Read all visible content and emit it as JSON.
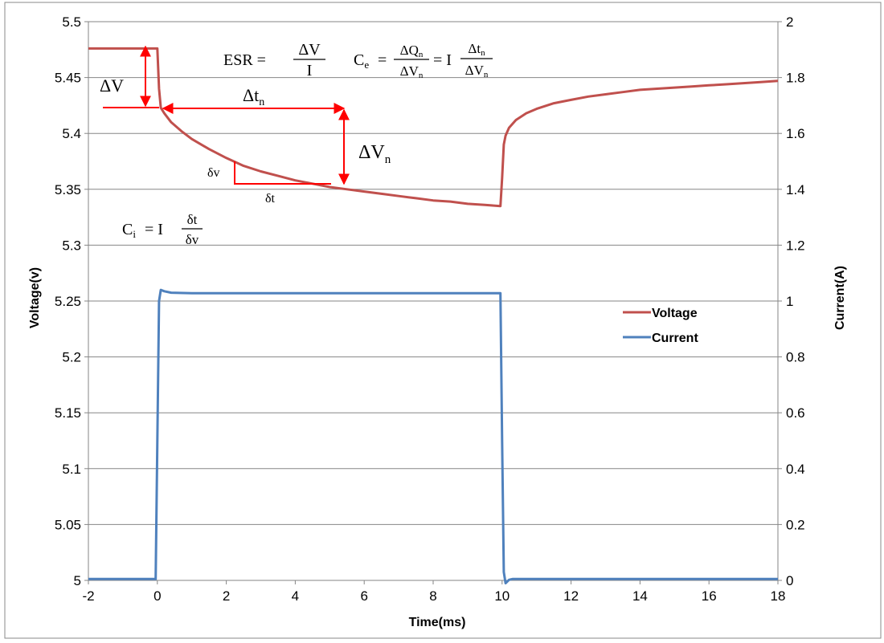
{
  "chart_data": {
    "type": "line",
    "title": "",
    "xlabel": "Time(ms)",
    "ylabel_left": "Voltage(v)",
    "ylabel_right": "Current(A)",
    "xlim": [
      -2,
      18
    ],
    "ylim_left": [
      5,
      5.5
    ],
    "ylim_right": [
      0,
      2
    ],
    "x_ticks": [
      "-2",
      "0",
      "2",
      "4",
      "6",
      "8",
      "10",
      "12",
      "14",
      "16",
      "18"
    ],
    "y_left_ticks": [
      "5",
      "5.05",
      "5.1",
      "5.15",
      "5.2",
      "5.25",
      "5.3",
      "5.35",
      "5.4",
      "5.45",
      "5.5"
    ],
    "y_right_ticks": [
      "0",
      "0.2",
      "0.4",
      "0.6",
      "0.8",
      "1",
      "1.2",
      "1.4",
      "1.6",
      "1.8",
      "2"
    ],
    "grid": "horizontal",
    "legend_position": "right",
    "series": [
      {
        "name": "Voltage",
        "axis": "left",
        "color": "#c0504d",
        "x": [
          -2,
          -1,
          -0.1,
          0,
          0.05,
          0.1,
          0.2,
          0.4,
          0.7,
          1.0,
          1.5,
          2.0,
          2.5,
          3.0,
          3.5,
          4.0,
          4.5,
          5.0,
          5.5,
          6.0,
          6.5,
          7.0,
          7.5,
          8.0,
          8.5,
          9.0,
          9.5,
          9.95,
          10.0,
          10.05,
          10.1,
          10.2,
          10.4,
          10.7,
          11.0,
          11.5,
          12.0,
          12.5,
          13.0,
          13.5,
          14.0,
          14.5,
          15.0,
          15.5,
          16.0,
          16.5,
          17.0,
          17.5,
          18.0
        ],
        "y": [
          5.476,
          5.476,
          5.476,
          5.476,
          5.44,
          5.423,
          5.418,
          5.41,
          5.402,
          5.395,
          5.386,
          5.378,
          5.371,
          5.366,
          5.362,
          5.358,
          5.355,
          5.352,
          5.35,
          5.348,
          5.346,
          5.344,
          5.342,
          5.34,
          5.339,
          5.337,
          5.336,
          5.335,
          5.36,
          5.39,
          5.398,
          5.405,
          5.412,
          5.418,
          5.422,
          5.427,
          5.43,
          5.433,
          5.435,
          5.437,
          5.439,
          5.44,
          5.441,
          5.442,
          5.443,
          5.444,
          5.445,
          5.446,
          5.447
        ]
      },
      {
        "name": "Current",
        "axis": "right",
        "color": "#4f81bd",
        "x": [
          -2,
          -0.05,
          0,
          0.05,
          0.1,
          0.2,
          0.4,
          1.0,
          3.0,
          5.0,
          7.0,
          9.0,
          9.95,
          10.0,
          10.05,
          10.1,
          10.2,
          10.3,
          11.0,
          14.0,
          18.0
        ],
        "y": [
          0.005,
          0.005,
          0.5,
          1.0,
          1.04,
          1.035,
          1.03,
          1.028,
          1.028,
          1.028,
          1.028,
          1.028,
          1.028,
          0.5,
          0.03,
          -0.01,
          0.002,
          0.005,
          0.005,
          0.005,
          0.005
        ]
      }
    ],
    "annotations": {
      "esr_lhs": "ESR =",
      "esr_num": "ΔV",
      "esr_den": "I",
      "ce_lhs": "C",
      "ce_lhs_sub": "e",
      "ce_eq": "=",
      "ce_num1": "ΔQ",
      "ce_num1_sub": "n",
      "ce_den1": "ΔV",
      "ce_den1_sub": "n",
      "ce_mid": "= I",
      "ce_num2": "Δt",
      "ce_num2_sub": "n",
      "ce_den2": "ΔV",
      "ce_den2_sub": "n",
      "ci_lhs": "C",
      "ci_lhs_sub": "i",
      "ci_mid": "= I",
      "ci_num": "δt",
      "ci_den": "δv",
      "delta_v": "ΔV",
      "delta_tn": "Δt",
      "delta_tn_sub": "n",
      "delta_vn": "ΔV",
      "delta_vn_sub": "n",
      "small_dv": "δv",
      "small_dt": "δt",
      "arrow_color": "#ff0000"
    }
  }
}
